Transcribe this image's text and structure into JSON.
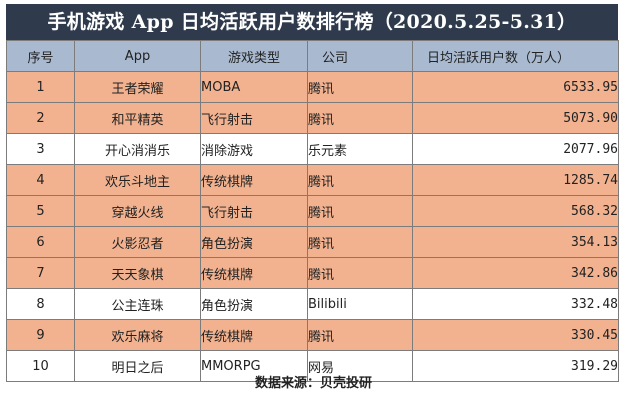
{
  "title": "手机游戏 App 日均活跃用户数排行榜（2020.5.25-5.31）",
  "columns": [
    "序号",
    "App",
    "游戏类型",
    "公司",
    "日均活跃用户数（万人）"
  ],
  "row_colors": {
    "highlight": "#f2b28f",
    "plain": "#ffffff",
    "header": "#a9bad0",
    "title": "#2f3b4d"
  },
  "rows": [
    {
      "rank": "1",
      "app": "王者荣耀",
      "type": "MOBA",
      "company": "腾讯",
      "dau": "6533.95",
      "highlight": true
    },
    {
      "rank": "2",
      "app": "和平精英",
      "type": "飞行射击",
      "company": "腾讯",
      "dau": "5073.90",
      "highlight": true
    },
    {
      "rank": "3",
      "app": "开心消消乐",
      "type": "消除游戏",
      "company": "乐元素",
      "dau": "2077.96",
      "highlight": false
    },
    {
      "rank": "4",
      "app": "欢乐斗地主",
      "type": "传统棋牌",
      "company": "腾讯",
      "dau": "1285.74",
      "highlight": true
    },
    {
      "rank": "5",
      "app": "穿越火线",
      "type": "飞行射击",
      "company": "腾讯",
      "dau": "568.32",
      "highlight": true
    },
    {
      "rank": "6",
      "app": "火影忍者",
      "type": "角色扮演",
      "company": "腾讯",
      "dau": "354.13",
      "highlight": true
    },
    {
      "rank": "7",
      "app": "天天象棋",
      "type": "传统棋牌",
      "company": "腾讯",
      "dau": "342.86",
      "highlight": true
    },
    {
      "rank": "8",
      "app": "公主连珠",
      "type": "角色扮演",
      "company": "Bilibili",
      "dau": "332.48",
      "highlight": false
    },
    {
      "rank": "9",
      "app": "欢乐麻将",
      "type": "传统棋牌",
      "company": "腾讯",
      "dau": "330.45",
      "highlight": true
    },
    {
      "rank": "10",
      "app": "明日之后",
      "type": "MMORPG",
      "company": "网易",
      "dau": "319.29",
      "highlight": false
    }
  ],
  "footer": "数据来源：贝壳投研"
}
